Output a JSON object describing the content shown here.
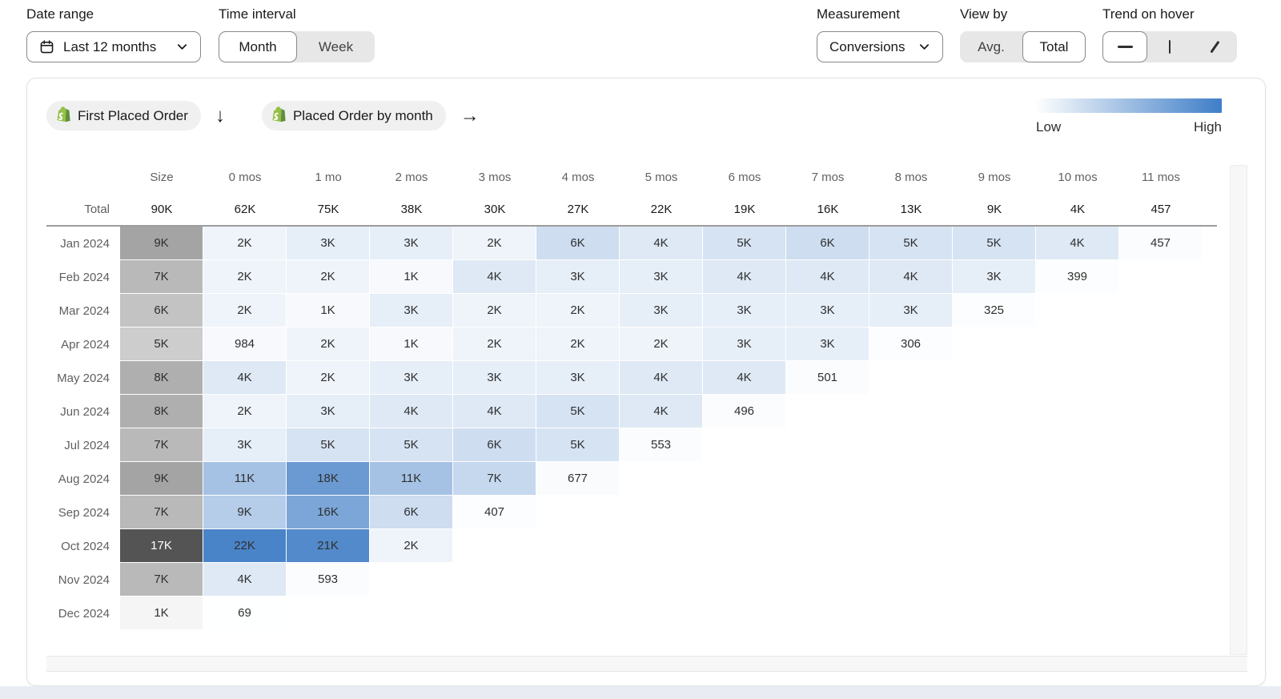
{
  "toolbar": {
    "date_range": {
      "label": "Date range",
      "value": "Last 12 months"
    },
    "time_interval": {
      "label": "Time interval",
      "options": [
        "Month",
        "Week"
      ],
      "selected": "Month"
    },
    "measurement": {
      "label": "Measurement",
      "value": "Conversions"
    },
    "view_by": {
      "label": "View by",
      "options": [
        "Avg.",
        "Total"
      ],
      "selected": "Total"
    },
    "trend_on_hover": {
      "label": "Trend on hover",
      "options": [
        "horizontal-line",
        "vertical-bar",
        "diagonal-line"
      ],
      "selected": "horizontal-line"
    }
  },
  "cohort": {
    "event_start": "First Placed Order",
    "event_return": "Placed Order by month",
    "legend": {
      "low": "Low",
      "high": "High"
    }
  },
  "chart_data": {
    "type": "heatmap",
    "title": "Cohort analysis: First Placed Order → Placed Order by month (Conversions, Total)",
    "columns": [
      "Size",
      "0 mos",
      "1 mo",
      "2 mos",
      "3 mos",
      "4 mos",
      "5 mos",
      "6 mos",
      "7 mos",
      "8 mos",
      "9 mos",
      "10 mos",
      "11 mos"
    ],
    "total_label": "Total",
    "totals": [
      "90K",
      "62K",
      "75K",
      "38K",
      "30K",
      "27K",
      "22K",
      "19K",
      "16K",
      "13K",
      "9K",
      "4K",
      "457"
    ],
    "scale": {
      "low_color": "#ffffff",
      "cell_high_color": "#4a84c8",
      "size_high_color": "#545454",
      "cell_max": 22000,
      "size_max": 17000,
      "white_text_threshold": 0.75
    },
    "rows": [
      {
        "label": "Jan 2024",
        "size": {
          "t": "9K",
          "v": 9000
        },
        "cells": [
          {
            "t": "2K",
            "v": 2000
          },
          {
            "t": "3K",
            "v": 3000
          },
          {
            "t": "3K",
            "v": 3000
          },
          {
            "t": "2K",
            "v": 2000
          },
          {
            "t": "6K",
            "v": 6000
          },
          {
            "t": "4K",
            "v": 4000
          },
          {
            "t": "5K",
            "v": 5000
          },
          {
            "t": "6K",
            "v": 6000
          },
          {
            "t": "5K",
            "v": 5000
          },
          {
            "t": "5K",
            "v": 5000
          },
          {
            "t": "4K",
            "v": 4000
          },
          {
            "t": "457",
            "v": 457
          }
        ]
      },
      {
        "label": "Feb 2024",
        "size": {
          "t": "7K",
          "v": 7000
        },
        "cells": [
          {
            "t": "2K",
            "v": 2000
          },
          {
            "t": "2K",
            "v": 2000
          },
          {
            "t": "1K",
            "v": 1000
          },
          {
            "t": "4K",
            "v": 4000
          },
          {
            "t": "3K",
            "v": 3000
          },
          {
            "t": "3K",
            "v": 3000
          },
          {
            "t": "4K",
            "v": 4000
          },
          {
            "t": "4K",
            "v": 4000
          },
          {
            "t": "4K",
            "v": 4000
          },
          {
            "t": "3K",
            "v": 3000
          },
          {
            "t": "399",
            "v": 399
          }
        ]
      },
      {
        "label": "Mar 2024",
        "size": {
          "t": "6K",
          "v": 6000
        },
        "cells": [
          {
            "t": "2K",
            "v": 2000
          },
          {
            "t": "1K",
            "v": 1000
          },
          {
            "t": "3K",
            "v": 3000
          },
          {
            "t": "2K",
            "v": 2000
          },
          {
            "t": "2K",
            "v": 2000
          },
          {
            "t": "3K",
            "v": 3000
          },
          {
            "t": "3K",
            "v": 3000
          },
          {
            "t": "3K",
            "v": 3000
          },
          {
            "t": "3K",
            "v": 3000
          },
          {
            "t": "325",
            "v": 325
          }
        ]
      },
      {
        "label": "Apr 2024",
        "size": {
          "t": "5K",
          "v": 5000
        },
        "cells": [
          {
            "t": "984",
            "v": 984
          },
          {
            "t": "2K",
            "v": 2000
          },
          {
            "t": "1K",
            "v": 1000
          },
          {
            "t": "2K",
            "v": 2000
          },
          {
            "t": "2K",
            "v": 2000
          },
          {
            "t": "2K",
            "v": 2000
          },
          {
            "t": "3K",
            "v": 3000
          },
          {
            "t": "3K",
            "v": 3000
          },
          {
            "t": "306",
            "v": 306
          }
        ]
      },
      {
        "label": "May 2024",
        "size": {
          "t": "8K",
          "v": 8000
        },
        "cells": [
          {
            "t": "4K",
            "v": 4000
          },
          {
            "t": "2K",
            "v": 2000
          },
          {
            "t": "3K",
            "v": 3000
          },
          {
            "t": "3K",
            "v": 3000
          },
          {
            "t": "3K",
            "v": 3000
          },
          {
            "t": "4K",
            "v": 4000
          },
          {
            "t": "4K",
            "v": 4000
          },
          {
            "t": "501",
            "v": 501
          }
        ]
      },
      {
        "label": "Jun 2024",
        "size": {
          "t": "8K",
          "v": 8000
        },
        "cells": [
          {
            "t": "2K",
            "v": 2000
          },
          {
            "t": "3K",
            "v": 3000
          },
          {
            "t": "4K",
            "v": 4000
          },
          {
            "t": "4K",
            "v": 4000
          },
          {
            "t": "5K",
            "v": 5000
          },
          {
            "t": "4K",
            "v": 4000
          },
          {
            "t": "496",
            "v": 496
          }
        ]
      },
      {
        "label": "Jul 2024",
        "size": {
          "t": "7K",
          "v": 7000
        },
        "cells": [
          {
            "t": "3K",
            "v": 3000
          },
          {
            "t": "5K",
            "v": 5000
          },
          {
            "t": "5K",
            "v": 5000
          },
          {
            "t": "6K",
            "v": 6000
          },
          {
            "t": "5K",
            "v": 5000
          },
          {
            "t": "553",
            "v": 553
          }
        ]
      },
      {
        "label": "Aug 2024",
        "size": {
          "t": "9K",
          "v": 9000
        },
        "cells": [
          {
            "t": "11K",
            "v": 11000
          },
          {
            "t": "18K",
            "v": 18000
          },
          {
            "t": "11K",
            "v": 11000
          },
          {
            "t": "7K",
            "v": 7000
          },
          {
            "t": "677",
            "v": 677
          }
        ]
      },
      {
        "label": "Sep 2024",
        "size": {
          "t": "7K",
          "v": 7000
        },
        "cells": [
          {
            "t": "9K",
            "v": 9000
          },
          {
            "t": "16K",
            "v": 16000
          },
          {
            "t": "6K",
            "v": 6000
          },
          {
            "t": "407",
            "v": 407
          }
        ]
      },
      {
        "label": "Oct 2024",
        "size": {
          "t": "17K",
          "v": 17000
        },
        "cells": [
          {
            "t": "22K",
            "v": 22000
          },
          {
            "t": "21K",
            "v": 21000
          },
          {
            "t": "2K",
            "v": 2000
          }
        ]
      },
      {
        "label": "Nov 2024",
        "size": {
          "t": "7K",
          "v": 7000
        },
        "cells": [
          {
            "t": "4K",
            "v": 4000
          },
          {
            "t": "593",
            "v": 593
          }
        ]
      },
      {
        "label": "Dec 2024",
        "size": {
          "t": "1K",
          "v": 1000
        },
        "cells": [
          {
            "t": "69",
            "v": 69
          }
        ]
      }
    ]
  }
}
